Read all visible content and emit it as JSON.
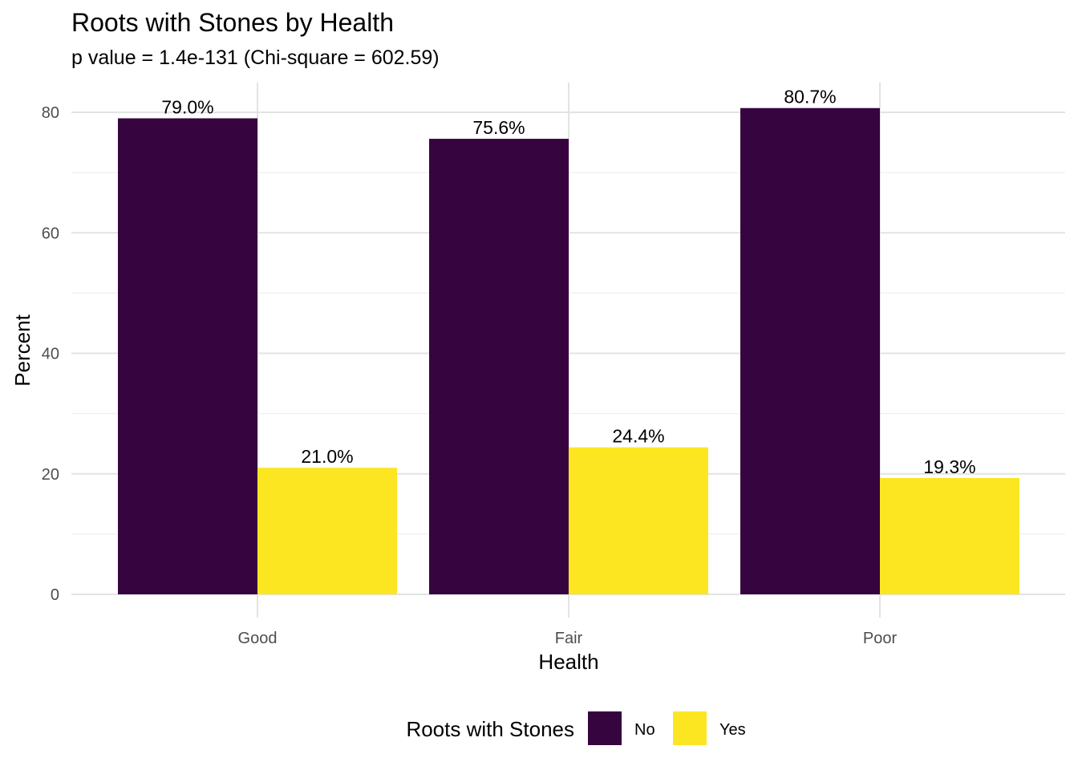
{
  "chart_data": {
    "type": "bar",
    "title": "Roots with Stones by Health",
    "subtitle": "p value = 1.4e-131 (Chi-square = 602.59)",
    "xlabel": "Health",
    "ylabel": "Percent",
    "categories": [
      "Good",
      "Fair",
      "Poor"
    ],
    "series": [
      {
        "name": "No",
        "color": "#360540",
        "values": [
          79.0,
          75.6,
          80.7
        ],
        "labels": [
          "79.0%",
          "75.6%",
          "80.7%"
        ]
      },
      {
        "name": "Yes",
        "color": "#fce622",
        "values": [
          21.0,
          24.4,
          19.3
        ],
        "labels": [
          "21.0%",
          "24.4%",
          "19.3%"
        ]
      }
    ],
    "ylim": [
      0,
      84
    ],
    "yticks": [
      0,
      20,
      40,
      60,
      80
    ],
    "grid": true,
    "legend": {
      "title": "Roots with Stones",
      "position": "bottom"
    }
  }
}
